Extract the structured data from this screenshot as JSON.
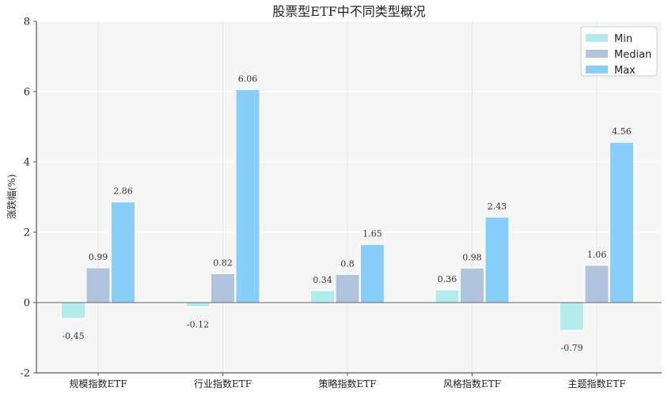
{
  "chart_data": {
    "type": "bar",
    "title": "股票型ETF中不同类型概况",
    "ylabel": "涨跌幅(%)",
    "xlabel": "",
    "categories": [
      "规模指数ETF",
      "行业指数ETF",
      "策略指数ETF",
      "风格指数ETF",
      "主题指数ETF"
    ],
    "series": [
      {
        "name": "Min",
        "color": "#b2ebeb",
        "values": [
          -0.45,
          -0.12,
          0.34,
          0.36,
          -0.79
        ],
        "labels": [
          "-0.45",
          "-0.12",
          "0.34",
          "0.36",
          "-0.79"
        ]
      },
      {
        "name": "Median",
        "color": "#b0c4de",
        "values": [
          0.99,
          0.82,
          0.8,
          0.98,
          1.06
        ],
        "labels": [
          "0.99",
          "0.82",
          "0.8",
          "0.98",
          "1.06"
        ]
      },
      {
        "name": "Max",
        "color": "#87cefa",
        "values": [
          2.86,
          6.06,
          1.65,
          2.43,
          4.56
        ],
        "labels": [
          "2.86",
          "6.06",
          "1.65",
          "2.43",
          "4.56"
        ]
      }
    ],
    "ylim": [
      -2,
      8
    ],
    "yticks": [
      "-2",
      "0",
      "2",
      "4",
      "6",
      "8"
    ],
    "grid": true,
    "legend_position": "top-right"
  }
}
